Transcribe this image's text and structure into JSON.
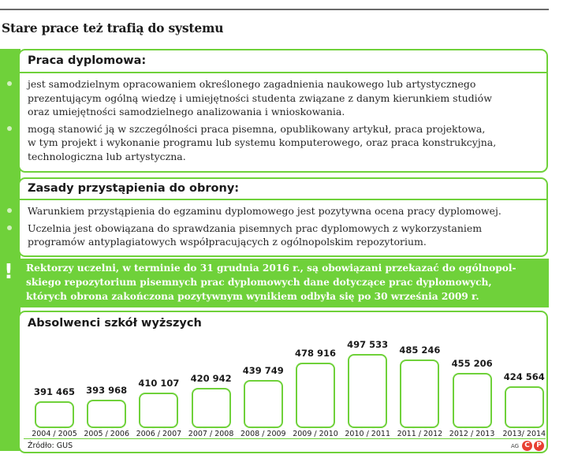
{
  "title": "Stare prace też trafią do systemu",
  "section1": {
    "heading": "Praca dyplomowa:",
    "bullets": [
      [
        "jest samodzielnym opracowaniem określonego zagadnienia naukowego lub artystycznego",
        "prezentującym ogólną wiedzę i umiejętności studenta związane z danym kierunkiem studiów",
        "oraz umiejętności samodzielnego analizowania i wnioskowania."
      ],
      [
        "mogą stanowić ją w szczególności praca pisemna, opublikowany artykuł, praca projektowa,",
        "w tym projekt i wykonanie programu lub systemu komputerowego, oraz praca konstrukcyjna,",
        "technologiczna lub artystyczna."
      ]
    ]
  },
  "section2": {
    "heading": "Zasady przystąpienia do obrony:",
    "bullets": [
      [
        "Warunkiem przystąpienia do egzaminu dyplomowego jest pozytywna ocena pracy dyplomowej."
      ],
      [
        "Uczelnia jest obowiązana do sprawdzania pisemnych prac dyplomowych z wykorzystaniem",
        "programów antyplagiatowych współpracujących z ogólnopolskim repozytorium."
      ]
    ]
  },
  "notice": {
    "mark": "!",
    "lines": [
      "Rektorzy uczelni, w terminie do 31 grudnia 2016 r., są obowiązani przekazać do ogólnopol-",
      "skiego repozytorium pisemnych prac dyplomowych dane dotyczące prac dyplomowych,",
      "których obrona zakończona pozytywnym wynikiem odbyła się po 30 września 2009 r."
    ]
  },
  "chart_data": {
    "type": "bar",
    "title": "Absolwenci szkół wyższych",
    "categories": [
      "2004 / 2005",
      "2005 / 2006",
      "2006 / 2007",
      "2007 / 2008",
      "2008 / 2009",
      "2009 / 2010",
      "2010 / 2011",
      "2011 / 2012",
      "2012 / 2013",
      "2013/ 2014"
    ],
    "values": [
      391465,
      393968,
      410107,
      420942,
      439749,
      478916,
      497533,
      485246,
      455206,
      424564
    ],
    "value_labels": [
      "391 465",
      "393 968",
      "410 107",
      "420 942",
      "439 749",
      "478 916",
      "497 533",
      "485 246",
      "455 206",
      "424 564"
    ],
    "xlabel": "",
    "ylabel": "",
    "grid": false
  },
  "source": "Źródło: GUS",
  "credit": "AG",
  "logos": [
    "C",
    "P"
  ],
  "colors": {
    "accent": "#6fd13a",
    "text": "#222222",
    "rule": "#6a6a6a"
  }
}
